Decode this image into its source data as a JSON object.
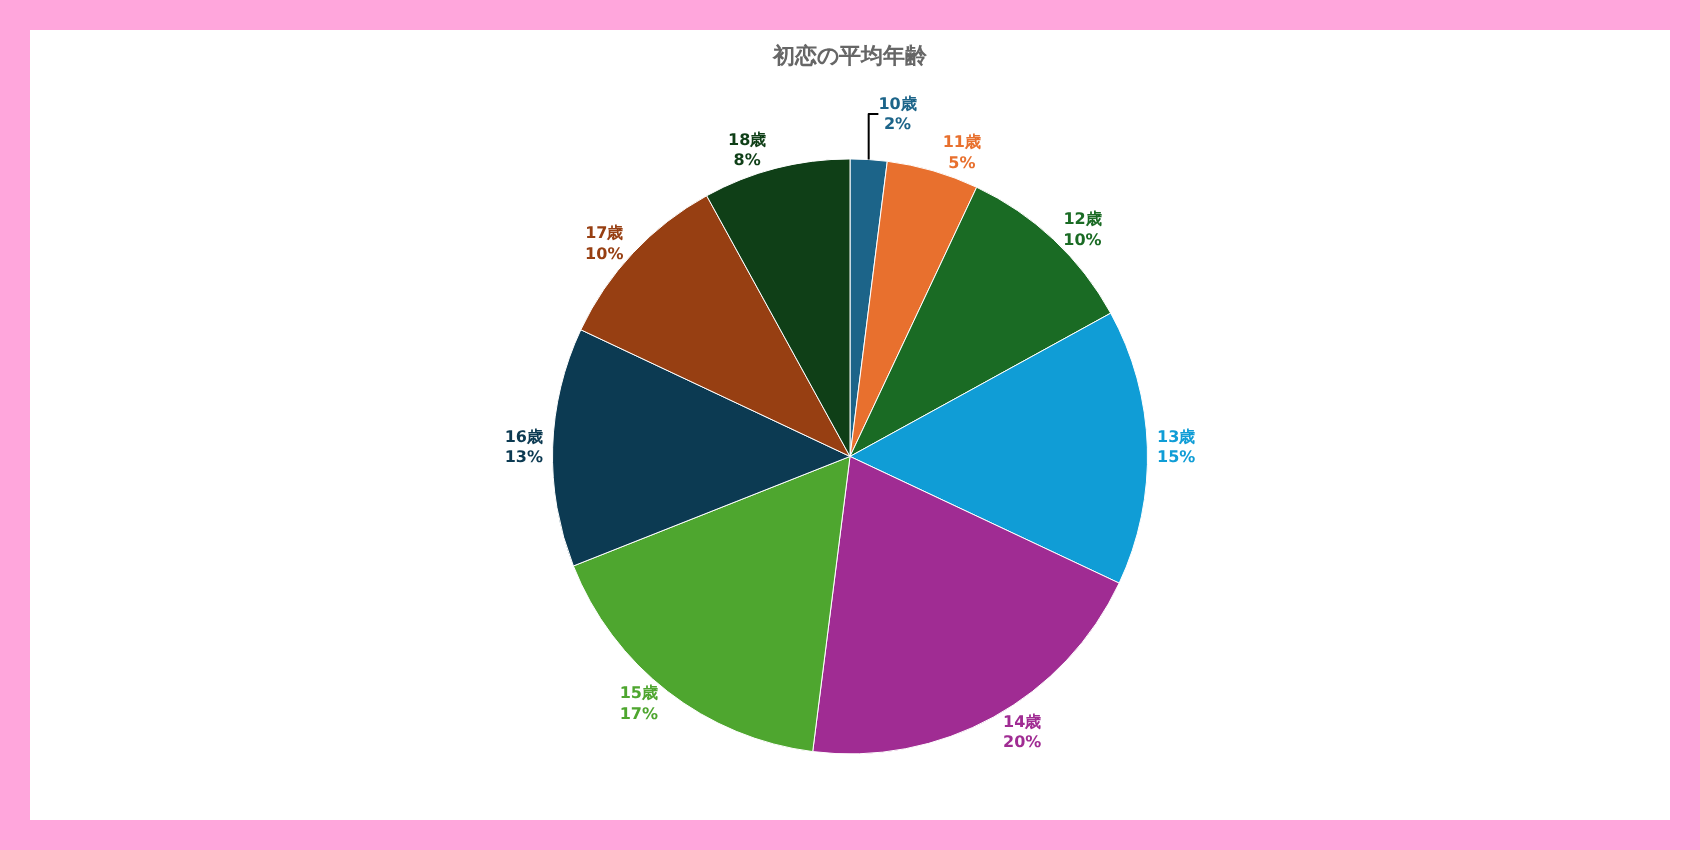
{
  "chart_data": {
    "type": "pie",
    "title": "初恋の平均年齢",
    "categories": [
      "10歳",
      "11歳",
      "12歳",
      "13歳",
      "14歳",
      "15歳",
      "16歳",
      "17歳",
      "18歳"
    ],
    "values": [
      2,
      5,
      10,
      15,
      20,
      17,
      13,
      10,
      8
    ],
    "value_labels": [
      "2%",
      "5%",
      "10%",
      "15%",
      "20%",
      "17%",
      "13%",
      "10%",
      "8%"
    ],
    "colors": [
      "#1c6489",
      "#e8702e",
      "#1a6b24",
      "#109dd6",
      "#a02c93",
      "#4ea62f",
      "#0c3a52",
      "#973f12",
      "#0f3f17"
    ],
    "legend": false
  }
}
